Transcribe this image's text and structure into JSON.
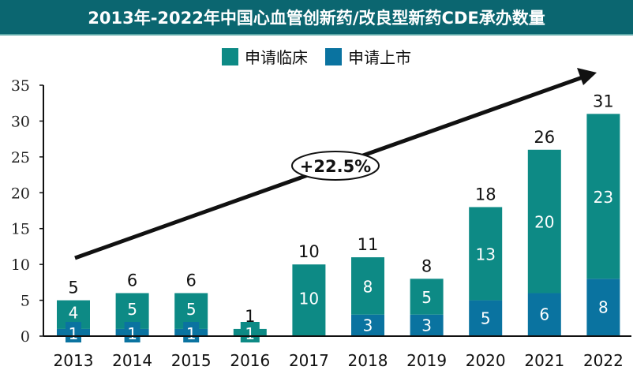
{
  "chart_data": {
    "type": "bar",
    "stacked": true,
    "title": "2013年-2022年中国心血管创新药/改良型新药CDE承办数量",
    "categories": [
      "2013",
      "2014",
      "2015",
      "2016",
      "2017",
      "2018",
      "2019",
      "2020",
      "2021",
      "2022"
    ],
    "series": [
      {
        "name": "申请临床",
        "color": "#0d8a85",
        "values": [
          4,
          5,
          5,
          1,
          10,
          8,
          5,
          13,
          20,
          23
        ]
      },
      {
        "name": "申请上市",
        "color": "#0a73a0",
        "values": [
          1,
          1,
          1,
          0,
          0,
          3,
          3,
          5,
          6,
          8
        ]
      }
    ],
    "totals": [
      5,
      6,
      6,
      1,
      10,
      11,
      8,
      18,
      26,
      31
    ],
    "ylim": [
      0,
      35
    ],
    "yticks": [
      "0",
      "5",
      "10",
      "15",
      "20",
      "25",
      "30",
      "35"
    ],
    "annotation": "+22.5%",
    "legend": "top",
    "grid": false
  }
}
